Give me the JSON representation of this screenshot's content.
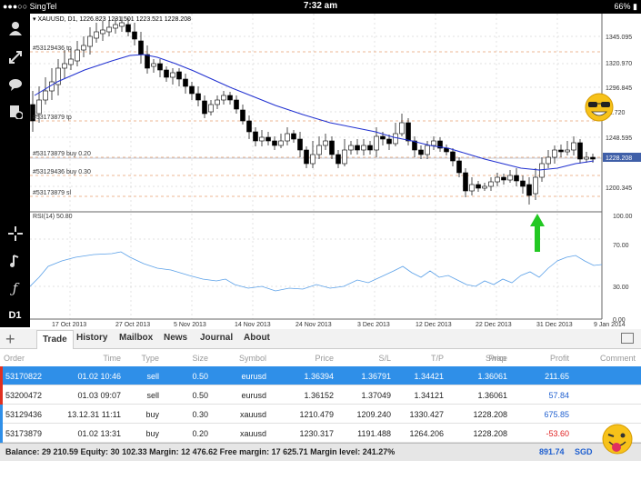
{
  "status_bar": {
    "carrier": "●●●○○ SingTel",
    "time": "7:32 am",
    "battery": "66%"
  },
  "chart": {
    "header": "▾ XAUUSD, D1, 1226.823 1231.501 1223.521 1228.208",
    "price_labels": [
      "1345.095",
      "1320.970",
      "1296.845",
      "12.720",
      "1248.595",
      "1228.208",
      "1200.345"
    ],
    "order_lines": [
      "#53129436 tp",
      "#53173879 tp",
      "#53173879 buy 0.20",
      "#53129436 buy 0.30",
      "#53173879 sl"
    ],
    "rsi_label": "RSI(14) 50.80",
    "rsi_scale": [
      "100.00",
      "70.00",
      "30.00",
      "0.00"
    ],
    "date_labels": [
      "17 Oct 2013",
      "27 Oct 2013",
      "5 Nov 2013",
      "14 Nov 2013",
      "24 Nov 2013",
      "3 Dec 2013",
      "12 Dec 2013",
      "22 Dec 2013",
      "31 Dec 2013",
      "9 Jan 2014"
    ],
    "sidebar_timeframe": "D1",
    "accent": "#1f2fd0"
  },
  "tabs": {
    "items": [
      "Trade",
      "History",
      "Mailbox",
      "News",
      "Journal",
      "About"
    ],
    "active": "Trade"
  },
  "table": {
    "headers": [
      "Order",
      "Time",
      "Type",
      "Size",
      "Symbol",
      "Price",
      "S/L",
      "T/P",
      "Price",
      "Swap",
      "Profit",
      "Comment"
    ],
    "rows": [
      {
        "order": "53170822",
        "time": "01.02 10:46",
        "type": "sell",
        "size": "0.50",
        "symbol": "eurusd",
        "price": "1.36394",
        "sl": "1.36791",
        "tp": "1.34421",
        "cur": "1.36061",
        "swap": "",
        "profit": "211.65"
      },
      {
        "order": "53200472",
        "time": "01.03 09:07",
        "type": "sell",
        "size": "0.50",
        "symbol": "eurusd",
        "price": "1.36152",
        "sl": "1.37049",
        "tp": "1.34121",
        "cur": "1.36061",
        "swap": "",
        "profit": "57.84"
      },
      {
        "order": "53129436",
        "time": "13.12.31 11:11",
        "type": "buy",
        "size": "0.30",
        "symbol": "xauusd",
        "price": "1210.479",
        "sl": "1209.240",
        "tp": "1330.427",
        "cur": "1228.208",
        "swap": "",
        "profit": "675.85"
      },
      {
        "order": "53173879",
        "time": "01.02 13:31",
        "type": "buy",
        "size": "0.20",
        "symbol": "xauusd",
        "price": "1230.317",
        "sl": "1191.488",
        "tp": "1264.206",
        "cur": "1228.208",
        "swap": "",
        "profit": "-53.60"
      }
    ]
  },
  "balance": {
    "text": "Balance: 29 210.59 Equity: 30 102.33 Margin: 12 476.62 Free margin: 17 625.71 Margin level: 241.27%",
    "total": "891.74",
    "currency": "SGD"
  }
}
